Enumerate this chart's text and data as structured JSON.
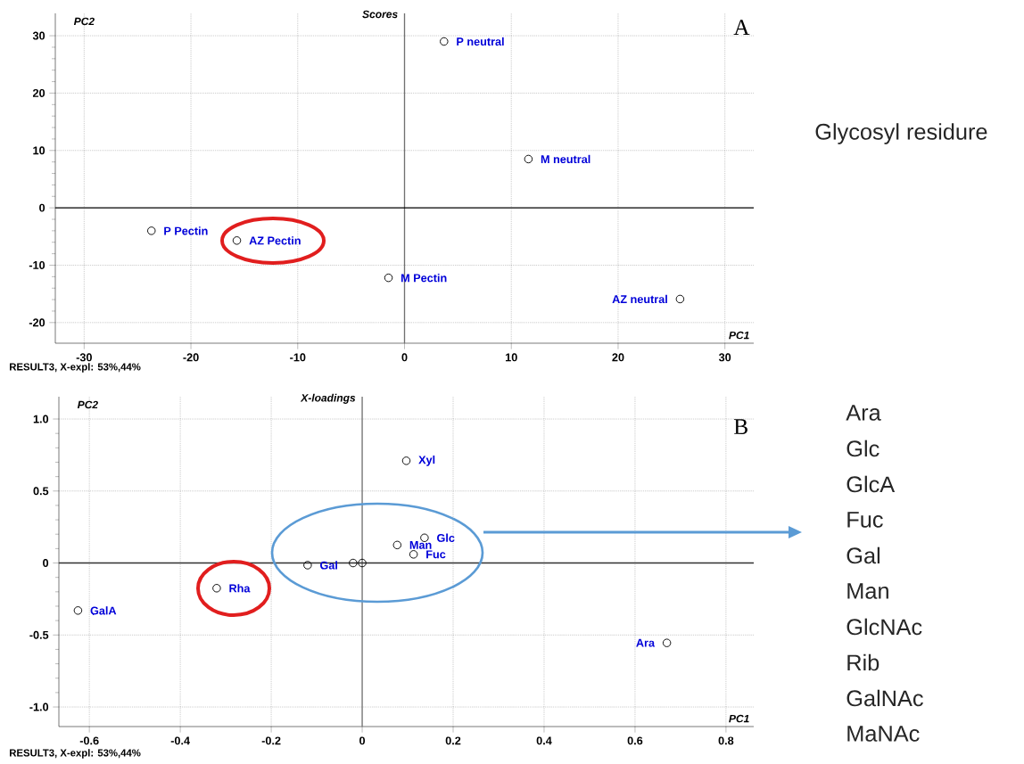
{
  "chart_data": [
    {
      "type": "scatter",
      "title": "Scores",
      "xlabel": "PC1",
      "ylabel": "PC2",
      "color": "#000000",
      "marker": "circle",
      "grid": true,
      "x": [
        3.7,
        11.6,
        -23.7,
        -15.7,
        -1.5,
        25.8
      ],
      "values": [
        29,
        8.5,
        -4,
        -5.7,
        -12.2,
        -15.9
      ],
      "xlim": [
        -32.7,
        32.7
      ],
      "ylim": [
        -23.6,
        33.9
      ],
      "xticks": [
        -30,
        -20,
        -10,
        0,
        10,
        20,
        30
      ],
      "yticks": [
        -20,
        -10,
        0,
        10,
        20,
        30
      ],
      "ref_lines": [
        {
          "axis": "x",
          "value": 0,
          "color": "#707070"
        },
        {
          "axis": "y",
          "value": 0,
          "color": "#000000"
        }
      ],
      "annotations": [
        {
          "text": "P neutral",
          "x": 3.7,
          "y": 29
        },
        {
          "text": "M neutral",
          "x": 11.6,
          "y": 8.5
        },
        {
          "text": "P Pectin",
          "x": -23.7,
          "y": -4
        },
        {
          "text": "AZ Pectin",
          "x": -15.7,
          "y": -5.7
        },
        {
          "text": "M Pectin",
          "x": -1.5,
          "y": -12.2
        },
        {
          "text": "AZ neutral",
          "x": 25.8,
          "y": -15.9
        },
        "A",
        "RESULT3, X-expl: 53%,44%",
        "Glycosyl residure"
      ]
    },
    {
      "type": "scatter",
      "title": "X-loadings",
      "xlabel": "PC1",
      "ylabel": "PC2",
      "color": "#000000",
      "marker": "circle",
      "grid": true,
      "x": [
        0.097,
        0.137,
        0.077,
        0.113,
        -0.12,
        -0.02,
        0,
        -0.32,
        -0.625,
        0.67
      ],
      "values": [
        0.71,
        0.175,
        0.125,
        0.06,
        -0.015,
        0,
        0,
        -0.175,
        -0.33,
        -0.555
      ],
      "xlim": [
        -0.667,
        0.861
      ],
      "ylim": [
        -1.136,
        1.155
      ],
      "xticks": [
        -0.6,
        -0.4,
        -0.2,
        0,
        0.2,
        0.4,
        0.6,
        0.8
      ],
      "yticks": [
        {
          "value": -1,
          "label": "-1.0"
        },
        -0.5,
        0,
        0.5,
        {
          "value": 1,
          "label": "1.0"
        }
      ],
      "ref_lines": [
        {
          "axis": "x",
          "value": 0,
          "color": "#707070"
        },
        {
          "axis": "y",
          "value": 0,
          "color": "#303030"
        }
      ],
      "annotations": [
        {
          "text": "Xyl",
          "x": 0.097,
          "y": 0.71
        },
        {
          "text": "Glc",
          "x": 0.137,
          "y": 0.175
        },
        {
          "text": "Man",
          "x": 0.077,
          "y": 0.125
        },
        {
          "text": "Fuc",
          "x": 0.113,
          "y": 0.06
        },
        {
          "text": "Gal",
          "x": -0.12,
          "y": -0.015
        },
        {
          "text": "Rha",
          "x": -0.32,
          "y": -0.175
        },
        {
          "text": "GalA",
          "x": -0.625,
          "y": -0.33
        },
        {
          "text": "Ara",
          "x": 0.67,
          "y": -0.555
        },
        "B",
        "RESULT3, X-expl: 53%,44%",
        "Ara",
        "Glc",
        "GlcA",
        "Fuc",
        "Gal",
        "Man",
        "GlcNAc",
        "Rib",
        "GalNAc",
        "MaNAc"
      ]
    }
  ]
}
